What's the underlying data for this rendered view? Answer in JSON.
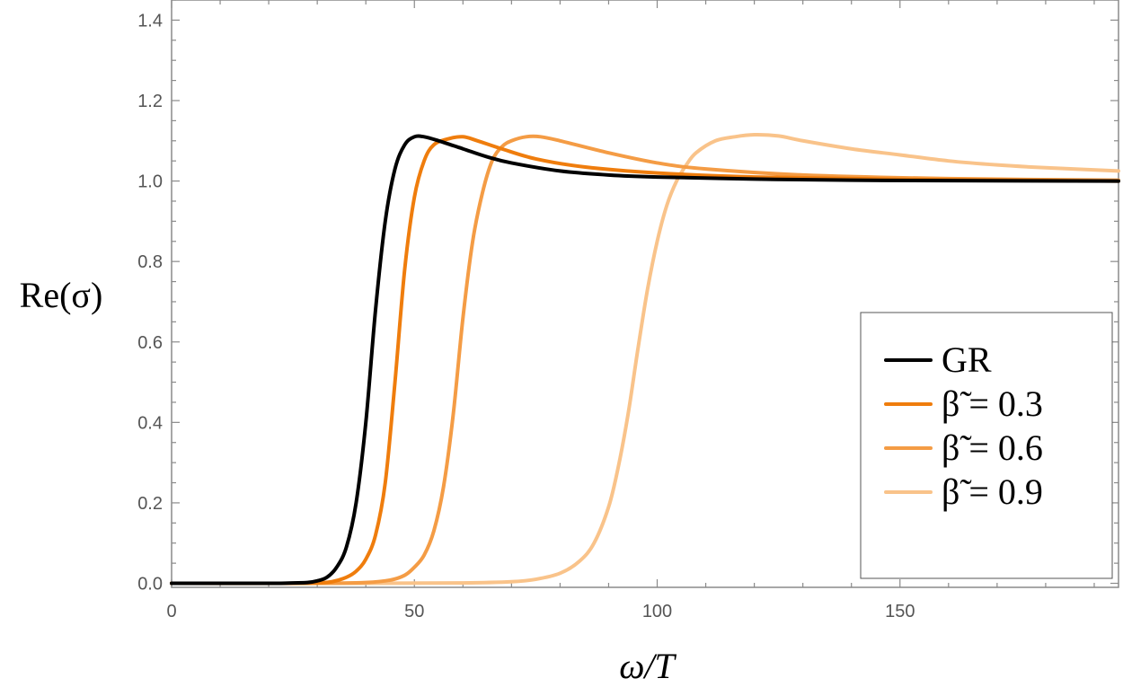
{
  "chart_data": {
    "type": "line",
    "xlabel": "ω/T",
    "ylabel": "Re(σ)",
    "xlim": [
      0,
      195
    ],
    "ylim": [
      -0.01,
      1.45
    ],
    "x_ticks": [
      "0",
      "50",
      "100",
      "150"
    ],
    "y_ticks": [
      "0.0",
      "0.2",
      "0.4",
      "0.6",
      "0.8",
      "1.0",
      "1.2",
      "1.4"
    ],
    "legend_position": "bottom-right",
    "series": [
      {
        "name": "GR",
        "color": "#000000",
        "points": [
          [
            0,
            0
          ],
          [
            20,
            0
          ],
          [
            25,
            0.001
          ],
          [
            28,
            0.002
          ],
          [
            30,
            0.006
          ],
          [
            32,
            0.015
          ],
          [
            34,
            0.04
          ],
          [
            36,
            0.09
          ],
          [
            38,
            0.2
          ],
          [
            40,
            0.4
          ],
          [
            42,
            0.68
          ],
          [
            44,
            0.9
          ],
          [
            46,
            1.03
          ],
          [
            48,
            1.09
          ],
          [
            50,
            1.11
          ],
          [
            52,
            1.11
          ],
          [
            55,
            1.1
          ],
          [
            60,
            1.08
          ],
          [
            65,
            1.06
          ],
          [
            70,
            1.045
          ],
          [
            80,
            1.025
          ],
          [
            90,
            1.015
          ],
          [
            100,
            1.01
          ],
          [
            120,
            1.005
          ],
          [
            140,
            1.002
          ],
          [
            160,
            1.001
          ],
          [
            195,
            1.0
          ]
        ]
      },
      {
        "name": "β̃ = 0.3",
        "color": "#ef7d0d",
        "points": [
          [
            0,
            0
          ],
          [
            25,
            0
          ],
          [
            30,
            0.001
          ],
          [
            33,
            0.004
          ],
          [
            36,
            0.015
          ],
          [
            38,
            0.03
          ],
          [
            40,
            0.06
          ],
          [
            42,
            0.12
          ],
          [
            44,
            0.25
          ],
          [
            46,
            0.5
          ],
          [
            48,
            0.78
          ],
          [
            50,
            0.96
          ],
          [
            52,
            1.05
          ],
          [
            54,
            1.09
          ],
          [
            57,
            1.105
          ],
          [
            60,
            1.11
          ],
          [
            63,
            1.1
          ],
          [
            68,
            1.08
          ],
          [
            75,
            1.055
          ],
          [
            85,
            1.035
          ],
          [
            100,
            1.02
          ],
          [
            120,
            1.01
          ],
          [
            150,
            1.004
          ],
          [
            195,
            1.0
          ]
        ]
      },
      {
        "name": "β̃ = 0.6",
        "color": "#f49c45",
        "points": [
          [
            0,
            0
          ],
          [
            30,
            0
          ],
          [
            40,
            0.002
          ],
          [
            45,
            0.008
          ],
          [
            48,
            0.02
          ],
          [
            50,
            0.04
          ],
          [
            52,
            0.07
          ],
          [
            54,
            0.13
          ],
          [
            56,
            0.24
          ],
          [
            58,
            0.42
          ],
          [
            60,
            0.66
          ],
          [
            62,
            0.85
          ],
          [
            64,
            0.97
          ],
          [
            66,
            1.05
          ],
          [
            68,
            1.085
          ],
          [
            70,
            1.1
          ],
          [
            73,
            1.11
          ],
          [
            76,
            1.11
          ],
          [
            80,
            1.1
          ],
          [
            90,
            1.07
          ],
          [
            100,
            1.045
          ],
          [
            110,
            1.03
          ],
          [
            130,
            1.015
          ],
          [
            160,
            1.006
          ],
          [
            195,
            1.002
          ]
        ]
      },
      {
        "name": "β̃ = 0.9",
        "color": "#f9c38a",
        "points": [
          [
            0,
            0
          ],
          [
            40,
            0
          ],
          [
            60,
            0.001
          ],
          [
            70,
            0.004
          ],
          [
            75,
            0.01
          ],
          [
            80,
            0.025
          ],
          [
            84,
            0.055
          ],
          [
            87,
            0.1
          ],
          [
            90,
            0.19
          ],
          [
            92,
            0.29
          ],
          [
            94,
            0.42
          ],
          [
            96,
            0.58
          ],
          [
            98,
            0.73
          ],
          [
            100,
            0.85
          ],
          [
            102,
            0.94
          ],
          [
            104,
            1.0
          ],
          [
            106,
            1.04
          ],
          [
            108,
            1.07
          ],
          [
            112,
            1.1
          ],
          [
            116,
            1.11
          ],
          [
            120,
            1.115
          ],
          [
            125,
            1.112
          ],
          [
            130,
            1.1
          ],
          [
            140,
            1.08
          ],
          [
            150,
            1.065
          ],
          [
            160,
            1.05
          ],
          [
            170,
            1.04
          ],
          [
            180,
            1.033
          ],
          [
            195,
            1.025
          ]
        ]
      }
    ]
  }
}
